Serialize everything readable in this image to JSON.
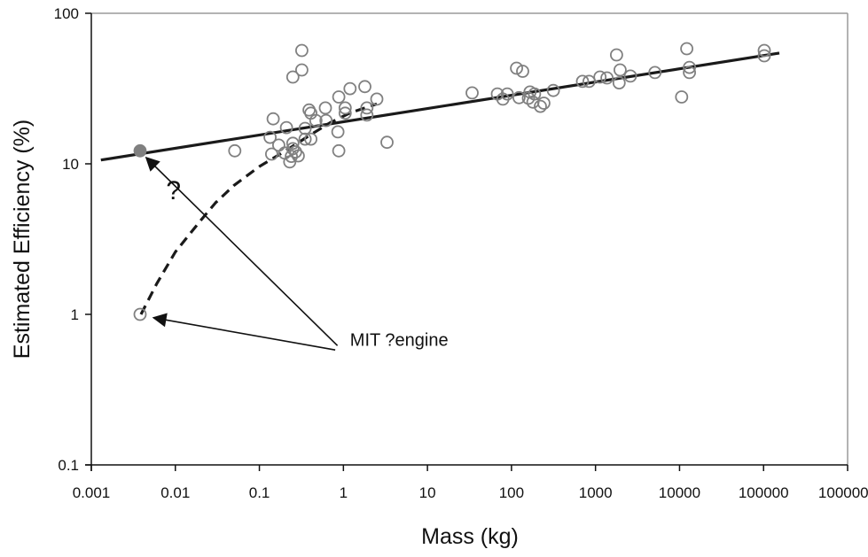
{
  "chart_data": {
    "type": "scatter",
    "title": "",
    "xlabel": "Mass (kg)",
    "ylabel": "Estimated Efficiency (%)",
    "xscale": "log",
    "yscale": "log",
    "xlim": [
      0.001,
      1000000
    ],
    "ylim": [
      0.1,
      100
    ],
    "grid": false,
    "legend": "none",
    "xticks": [
      "0.001",
      "0.01",
      "0.1",
      "1",
      "10",
      "100",
      "1000",
      "10000",
      "100000",
      "1000000"
    ],
    "xtick_values": [
      0.001,
      0.01,
      0.1,
      1,
      10,
      100,
      1000,
      10000,
      100000,
      1000000
    ],
    "yticks": [
      "0.1",
      "1",
      "10",
      "100"
    ],
    "ytick_values": [
      0.1,
      1,
      10,
      100
    ],
    "series": [
      {
        "name": "engines",
        "style": "open-circle",
        "color": "#808080",
        "points": [
          [
            0.0038,
            1.0
          ],
          [
            0.051,
            12.2
          ],
          [
            0.146,
            19.9
          ],
          [
            0.134,
            15.0
          ],
          [
            0.14,
            11.6
          ],
          [
            0.17,
            13.3
          ],
          [
            0.21,
            17.4
          ],
          [
            0.2,
            11.8
          ],
          [
            0.23,
            10.3
          ],
          [
            0.24,
            11.2
          ],
          [
            0.25,
            13.7
          ],
          [
            0.25,
            12.6
          ],
          [
            0.27,
            12.0
          ],
          [
            0.29,
            11.3
          ],
          [
            0.25,
            37.7
          ],
          [
            0.32,
            56.6
          ],
          [
            0.32,
            42.0
          ],
          [
            0.35,
            14.6
          ],
          [
            0.35,
            17.2
          ],
          [
            0.39,
            22.8
          ],
          [
            0.41,
            14.6
          ],
          [
            0.41,
            21.7
          ],
          [
            0.47,
            19.4
          ],
          [
            0.61,
            23.5
          ],
          [
            0.62,
            19.4
          ],
          [
            0.88,
            27.8
          ],
          [
            0.86,
            16.3
          ],
          [
            0.88,
            12.2
          ],
          [
            1.05,
            23.5
          ],
          [
            1.05,
            21.7
          ],
          [
            1.2,
            31.6
          ],
          [
            1.8,
            32.6
          ],
          [
            1.9,
            23.5
          ],
          [
            1.9,
            21.1
          ],
          [
            2.5,
            26.9
          ],
          [
            3.3,
            13.9
          ],
          [
            34,
            29.6
          ],
          [
            68,
            29.1
          ],
          [
            79,
            26.9
          ],
          [
            89,
            29.1
          ],
          [
            115,
            43.2
          ],
          [
            123,
            27.5
          ],
          [
            136,
            41.2
          ],
          [
            159,
            27.3
          ],
          [
            166,
            30.0
          ],
          [
            180,
            25.7
          ],
          [
            188,
            29.1
          ],
          [
            221,
            24.1
          ],
          [
            243,
            25.3
          ],
          [
            315,
            30.7
          ],
          [
            701,
            35.3
          ],
          [
            839,
            35.3
          ],
          [
            1130,
            37.7
          ],
          [
            1370,
            37.2
          ],
          [
            1780,
            52.9
          ],
          [
            1960,
            42.0
          ],
          [
            1910,
            34.5
          ],
          [
            2600,
            38.3
          ],
          [
            5100,
            40.4
          ],
          [
            10600,
            27.8
          ],
          [
            12200,
            58.2
          ],
          [
            13100,
            43.7
          ],
          [
            13100,
            40.4
          ],
          [
            102000,
            56.6
          ],
          [
            102000,
            52.2
          ]
        ]
      },
      {
        "name": "projected",
        "style": "filled-circle",
        "color": "#808080",
        "points": [
          [
            0.0038,
            12.2
          ]
        ]
      }
    ],
    "lines": [
      {
        "name": "trend-line",
        "style": "solid",
        "color": "#1a1a1a",
        "points": [
          [
            0.0013,
            10.6
          ],
          [
            154000,
            54.4
          ]
        ]
      },
      {
        "name": "scaling-curve",
        "style": "dashed",
        "color": "#1a1a1a",
        "points": [
          [
            0.0039,
            1.0
          ],
          [
            0.006,
            1.6
          ],
          [
            0.01,
            2.6
          ],
          [
            0.02,
            4.2
          ],
          [
            0.03,
            5.5
          ],
          [
            0.05,
            7.2
          ],
          [
            0.1,
            9.6
          ],
          [
            0.2,
            12.1
          ],
          [
            0.4,
            15.5
          ],
          [
            0.7,
            18.8
          ],
          [
            1.2,
            21.8
          ],
          [
            2.5,
            25.0
          ]
        ]
      }
    ],
    "annotations": [
      {
        "name": "question-mark",
        "text": "?",
        "at": [
          0.0095,
          5.8
        ]
      },
      {
        "name": "mit-engine-label",
        "text": "MIT ?engine",
        "at": [
          1.2,
          0.62
        ]
      }
    ],
    "arrows": [
      {
        "name": "arrow-to-projected",
        "from": [
          0.85,
          0.62
        ],
        "to": [
          0.0045,
          11.0
        ]
      },
      {
        "name": "arrow-to-actual",
        "from": [
          0.8,
          0.58
        ],
        "to": [
          0.0055,
          0.95
        ]
      }
    ]
  }
}
